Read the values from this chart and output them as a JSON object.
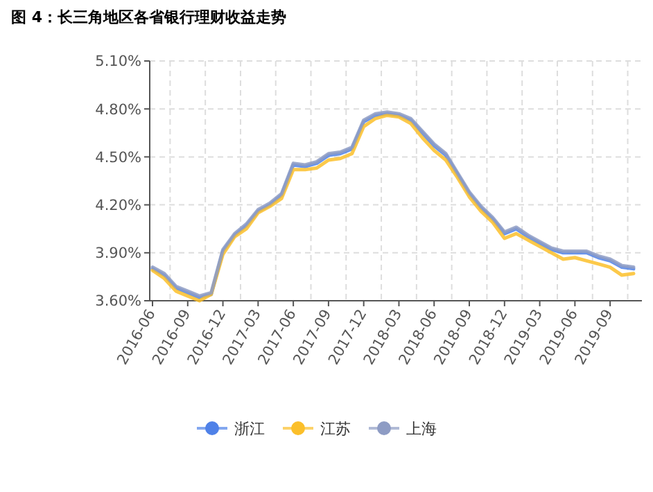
{
  "chart_data": {
    "type": "line",
    "title": "图 4：长三角地区各省银行理财收益走势",
    "categories": [
      "2016-06",
      null,
      null,
      "2016-09",
      null,
      null,
      "2016-12",
      null,
      null,
      "2017-03",
      null,
      null,
      "2017-06",
      null,
      null,
      "2017-09",
      null,
      null,
      "2017-12",
      null,
      null,
      "2018-03",
      null,
      null,
      "2018-06",
      null,
      null,
      "2018-09",
      null,
      null,
      "2018-12",
      null,
      null,
      "2019-03",
      null,
      null,
      "2019-06",
      null,
      null,
      "2019-09",
      null,
      null
    ],
    "series": [
      {
        "name": "浙江",
        "color": "#4f81e8",
        "values": [
          3.8,
          3.76,
          3.68,
          3.65,
          3.62,
          3.64,
          3.91,
          4.01,
          4.07,
          4.16,
          4.2,
          4.26,
          4.45,
          4.44,
          4.46,
          4.51,
          4.52,
          4.55,
          4.72,
          4.76,
          4.77,
          4.76,
          4.73,
          4.65,
          4.57,
          4.51,
          4.39,
          4.27,
          4.18,
          4.11,
          4.02,
          4.05,
          4.0,
          3.96,
          3.92,
          3.9,
          3.9,
          3.9,
          3.87,
          3.85,
          3.81,
          3.8
        ]
      },
      {
        "name": "江苏",
        "color": "#fbbf2a",
        "values": [
          3.79,
          3.74,
          3.66,
          3.63,
          3.6,
          3.64,
          3.89,
          4.0,
          4.05,
          4.15,
          4.19,
          4.24,
          4.42,
          4.42,
          4.43,
          4.48,
          4.49,
          4.52,
          4.69,
          4.74,
          4.76,
          4.75,
          4.71,
          4.62,
          4.54,
          4.48,
          4.37,
          4.25,
          4.16,
          4.09,
          3.99,
          4.02,
          3.98,
          3.94,
          3.9,
          3.86,
          3.87,
          3.85,
          3.83,
          3.81,
          3.76,
          3.77
        ]
      },
      {
        "name": "上海",
        "color": "#8e9cc4",
        "values": [
          3.81,
          3.77,
          3.69,
          3.66,
          3.63,
          3.65,
          3.92,
          4.02,
          4.08,
          4.17,
          4.21,
          4.27,
          4.46,
          4.45,
          4.47,
          4.52,
          4.53,
          4.56,
          4.73,
          4.77,
          4.78,
          4.77,
          4.74,
          4.66,
          4.58,
          4.52,
          4.4,
          4.28,
          4.19,
          4.12,
          4.03,
          4.06,
          4.01,
          3.97,
          3.93,
          3.91,
          3.91,
          3.91,
          3.88,
          3.86,
          3.82,
          3.81
        ]
      }
    ],
    "ylim": [
      3.6,
      5.1
    ],
    "yticks": [
      {
        "value": 3.6,
        "label": "3.60%"
      },
      {
        "value": 3.9,
        "label": "3.90%"
      },
      {
        "value": 4.2,
        "label": "4.20%"
      },
      {
        "value": 4.5,
        "label": "4.50%"
      },
      {
        "value": 4.8,
        "label": "4.80%"
      },
      {
        "value": 5.1,
        "label": "5.10%"
      }
    ],
    "grid": true,
    "legend": "bottom",
    "marker": "none",
    "line_style": "solid"
  }
}
